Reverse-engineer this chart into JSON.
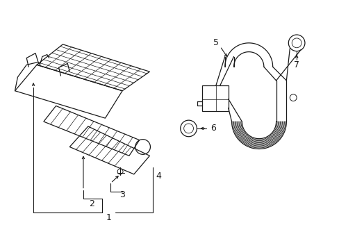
{
  "background_color": "#ffffff",
  "line_color": "#1a1a1a",
  "figsize": [
    4.89,
    3.6
  ],
  "dpi": 100,
  "label_fontsize": 9
}
